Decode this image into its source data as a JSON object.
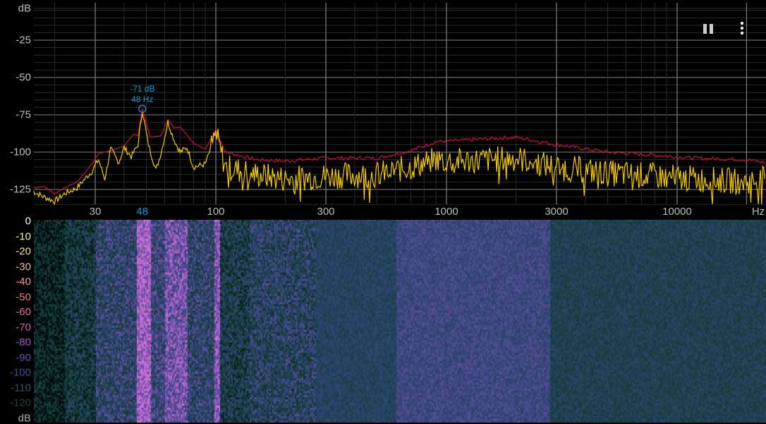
{
  "spectrum": {
    "y_axis": {
      "unit": "dB",
      "ticks": [
        -25,
        -50,
        -75,
        -100,
        -125
      ],
      "range": [
        0,
        -135
      ]
    },
    "x_axis": {
      "unit": "Hz",
      "scale": "log",
      "range": [
        16,
        24000
      ],
      "tick_labels": [
        "30",
        "100",
        "300",
        "1000",
        "3000",
        "10000"
      ],
      "ticks": [
        30,
        100,
        300,
        1000,
        3000,
        10000
      ]
    },
    "peak": {
      "freq": 48,
      "db": -71,
      "db_label": "-71 dB",
      "hz_label": "48 Hz",
      "axis_label": "48"
    },
    "colors": {
      "peak_hold": "#d0103a",
      "live": "#f5cc00",
      "peak_marker": "#1e9bd7",
      "grid": "#3a3a3a"
    },
    "peak_hold": [
      [
        16,
        -124
      ],
      [
        18,
        -123
      ],
      [
        20,
        -128
      ],
      [
        22,
        -124
      ],
      [
        25,
        -120
      ],
      [
        27,
        -114
      ],
      [
        29,
        -108
      ],
      [
        31,
        -101
      ],
      [
        35,
        -99
      ],
      [
        40,
        -96
      ],
      [
        44,
        -88
      ],
      [
        46,
        -89
      ],
      [
        48,
        -71
      ],
      [
        52,
        -90
      ],
      [
        58,
        -89
      ],
      [
        62,
        -78
      ],
      [
        66,
        -84
      ],
      [
        70,
        -83
      ],
      [
        80,
        -94
      ],
      [
        90,
        -98
      ],
      [
        100,
        -85
      ],
      [
        110,
        -100
      ],
      [
        150,
        -105
      ],
      [
        200,
        -106
      ],
      [
        300,
        -104
      ],
      [
        500,
        -104
      ],
      [
        700,
        -99
      ],
      [
        900,
        -93
      ],
      [
        1200,
        -92
      ],
      [
        2000,
        -90
      ],
      [
        3000,
        -95
      ],
      [
        5000,
        -100
      ],
      [
        8000,
        -102
      ],
      [
        12000,
        -104
      ],
      [
        20000,
        -105
      ],
      [
        24000,
        -107
      ]
    ],
    "live": [
      [
        16,
        -126
      ],
      [
        18,
        -130
      ],
      [
        20,
        -133
      ],
      [
        22,
        -128
      ],
      [
        25,
        -124
      ],
      [
        27,
        -118
      ],
      [
        29,
        -113
      ],
      [
        31,
        -105
      ],
      [
        33,
        -118
      ],
      [
        35,
        -98
      ],
      [
        38,
        -107
      ],
      [
        40,
        -97
      ],
      [
        43,
        -103
      ],
      [
        46,
        -95
      ],
      [
        48,
        -72
      ],
      [
        51,
        -95
      ],
      [
        55,
        -112
      ],
      [
        58,
        -100
      ],
      [
        62,
        -80
      ],
      [
        66,
        -92
      ],
      [
        70,
        -100
      ],
      [
        75,
        -97
      ],
      [
        80,
        -110
      ],
      [
        90,
        -108
      ],
      [
        100,
        -88
      ],
      [
        110,
        -110
      ],
      [
        150,
        -115
      ],
      [
        200,
        -118
      ],
      [
        300,
        -116
      ],
      [
        500,
        -115
      ],
      [
        700,
        -110
      ],
      [
        900,
        -105
      ],
      [
        1200,
        -106
      ],
      [
        2000,
        -104
      ],
      [
        3000,
        -110
      ],
      [
        5000,
        -114
      ],
      [
        8000,
        -116
      ],
      [
        12000,
        -118
      ],
      [
        20000,
        -120
      ],
      [
        24000,
        -118
      ]
    ]
  },
  "spectrogram": {
    "scale_labels": [
      "0",
      "-10",
      "-20",
      "-30",
      "-40",
      "-50",
      "-60",
      "-70",
      "-80",
      "-90",
      "-100",
      "-110",
      "-120",
      "dB"
    ],
    "scale_colors": [
      "#ffffff",
      "#f2efc0",
      "#efe0a0",
      "#e8c090",
      "#e8a080",
      "#e88080",
      "#e070a0",
      "#d060b0",
      "#a058c0",
      "#7050b0",
      "#405090",
      "#285868",
      "#184840",
      "#aaaaaa"
    ]
  },
  "toolbar": {
    "pause_icon": "pause-icon",
    "menu_icon": "more-vert-icon"
  }
}
